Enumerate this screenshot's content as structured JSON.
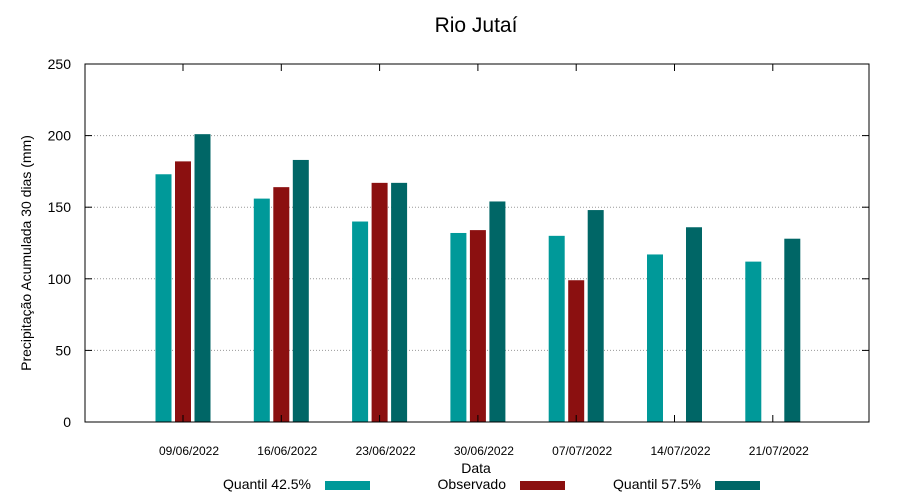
{
  "chart_data": {
    "type": "bar",
    "title": "Rio Jutaí",
    "xlabel": "Data",
    "ylabel": "Precipitação Acumulada 30 dias (mm)",
    "ylim": [
      0,
      250
    ],
    "yticks": [
      0,
      50,
      100,
      150,
      200,
      250
    ],
    "grid": true,
    "legend_position": "bottom",
    "categories": [
      "09/06/2022",
      "16/06/2022",
      "23/06/2022",
      "30/06/2022",
      "07/07/2022",
      "14/07/2022",
      "21/07/2022"
    ],
    "series": [
      {
        "name": "Quantil 42.5%",
        "color": "#009999",
        "values": [
          173,
          156,
          140,
          132,
          130,
          117,
          112
        ]
      },
      {
        "name": "Observado",
        "color": "#8b1010",
        "values": [
          182,
          164,
          167,
          134,
          99,
          null,
          null
        ]
      },
      {
        "name": "Quantil 57.5%",
        "color": "#006666",
        "values": [
          201,
          183,
          167,
          154,
          148,
          136,
          128
        ]
      }
    ]
  }
}
